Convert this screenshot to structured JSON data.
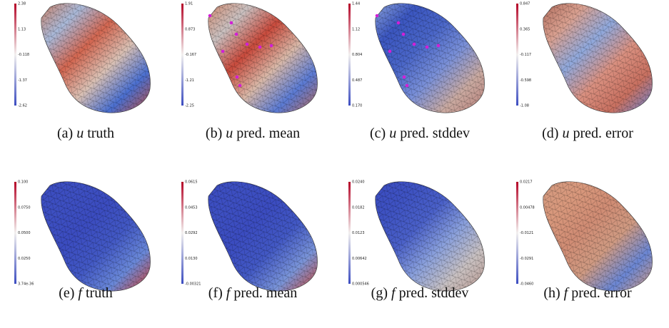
{
  "panels": [
    {
      "label": "(a)",
      "var": "u",
      "text": "truth",
      "ticks": [
        "2.38",
        "1.13",
        "-0.118",
        "-1.37",
        "-2.62"
      ]
    },
    {
      "label": "(b)",
      "var": "u",
      "text": "pred. mean",
      "ticks": [
        "1.91",
        "0.873",
        "-0.167",
        "-1.21",
        "-2.25"
      ]
    },
    {
      "label": "(c)",
      "var": "u",
      "text": "pred. stddev",
      "ticks": [
        "1.44",
        "1.12",
        "0.804",
        "0.487",
        "0.170"
      ]
    },
    {
      "label": "(d)",
      "var": "u",
      "text": "pred. error",
      "ticks": [
        "0.847",
        "0.365",
        "-0.117",
        "-0.598",
        "-1.08"
      ]
    },
    {
      "label": "(e)",
      "var": "f",
      "text": "truth",
      "ticks": [
        "0.100",
        "0.0750",
        "0.0500",
        "0.0250",
        "3.74e-36"
      ]
    },
    {
      "label": "(f)",
      "var": "f",
      "text": "pred. mean",
      "ticks": [
        "0.0615",
        "0.0453",
        "0.0292",
        "0.0130",
        "-0.00321"
      ]
    },
    {
      "label": "(g)",
      "var": "f",
      "text": "pred. stddev",
      "ticks": [
        "0.0240",
        "0.0182",
        "0.0123",
        "0.00642",
        "0.000546"
      ]
    },
    {
      "label": "(h)",
      "var": "f",
      "text": "pred. error",
      "ticks": [
        "0.0217",
        "0.00478",
        "-0.0121",
        "-0.0291",
        "-0.0460"
      ]
    }
  ]
}
